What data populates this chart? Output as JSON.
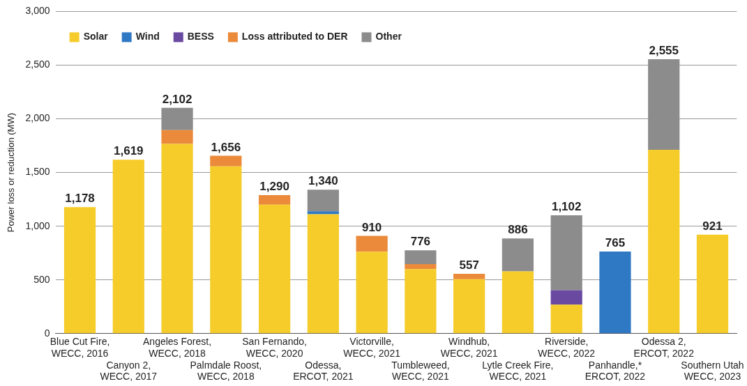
{
  "chart_data": {
    "type": "bar",
    "stacked": true,
    "ylabel": "Power loss or reduction (MW)",
    "categories": [
      "Blue Cut Fire,\nWECC, 2016",
      "Canyon 2,\nWECC, 2017",
      "Angeles Forest,\nWECC, 2018",
      "Palmdale Roost,\nWECC, 2018",
      "San Fernando,\nWECC, 2020",
      "Odessa,\nERCOT, 2021",
      "Victorville,\nWECC, 2021",
      "Tumbleweed,\nWECC, 2021",
      "Windhub,\nWECC, 2021",
      "Lytle Creek Fire,\nWECC, 2021",
      "Riverside,\nWECC, 2022",
      "Panhandle,*\nERCOT, 2022",
      "Odessa 2,\nERCOT, 2022",
      "Southern Utah\nWECC, 2023"
    ],
    "series": [
      {
        "name": "Solar",
        "color": "#f5cc2a",
        "values": [
          1178,
          1619,
          1766,
          1557,
          1200,
          1112,
          762,
          600,
          506,
          580,
          270,
          null,
          1712,
          921
        ]
      },
      {
        "name": "Wind",
        "color": "#2f78c4",
        "values": [
          null,
          null,
          null,
          null,
          null,
          27,
          null,
          null,
          null,
          null,
          null,
          765,
          null,
          null
        ]
      },
      {
        "name": "BESS",
        "color": "#6a4aa0",
        "values": [
          null,
          null,
          null,
          null,
          null,
          null,
          null,
          null,
          null,
          null,
          134,
          null,
          null,
          null
        ]
      },
      {
        "name": "Loss attributed to DER",
        "color": "#ea8a3a",
        "values": [
          null,
          null,
          128,
          99,
          90,
          null,
          148,
          47,
          51,
          null,
          null,
          null,
          null,
          null
        ]
      },
      {
        "name": "Other",
        "color": "#8c8c8c",
        "values": [
          null,
          null,
          208,
          null,
          null,
          201,
          null,
          129,
          null,
          306,
          698,
          null,
          843,
          null
        ]
      }
    ],
    "totals": [
      "1,178",
      "1,619",
      "2,102",
      "1,656",
      "1,290",
      "1,340",
      "910",
      "776",
      "557",
      "886",
      "1,102",
      "765",
      "2,555",
      "921"
    ],
    "ylim": [
      0,
      3000
    ],
    "yticks": [
      {
        "value": 0,
        "label": "0"
      },
      {
        "value": 500,
        "label": "500"
      },
      {
        "value": 1000,
        "label": "1,000"
      },
      {
        "value": 1500,
        "label": "1,500"
      },
      {
        "value": 2000,
        "label": "2,000"
      },
      {
        "value": 2500,
        "label": "2,500"
      },
      {
        "value": 3000,
        "label": "3,000"
      }
    ],
    "grid": "y",
    "legend": "top left"
  }
}
